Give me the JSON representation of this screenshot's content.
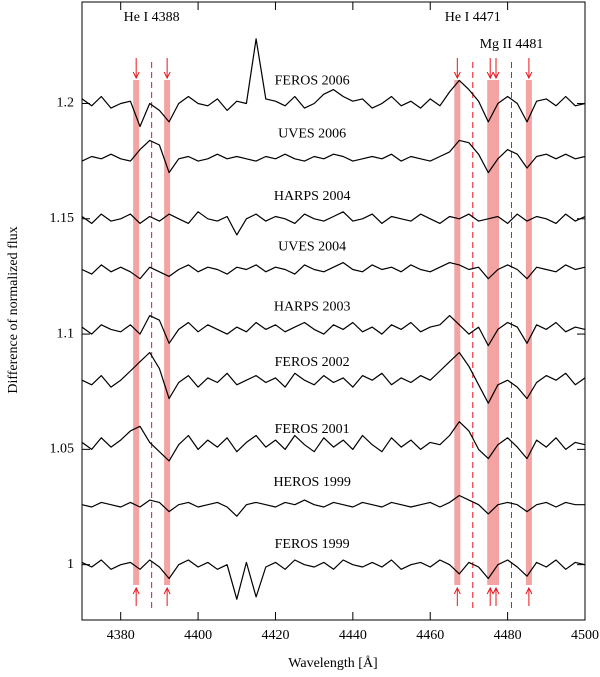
{
  "chart_data": {
    "type": "line",
    "xlabel": "Wavelength [Å]",
    "ylabel": "Difference of normalized flux",
    "xlim": [
      4370,
      4500
    ],
    "ylim": [
      0.976,
      1.244
    ],
    "xticks": [
      4380,
      4400,
      4420,
      4440,
      4460,
      4480,
      4500
    ],
    "yticks": [
      1,
      1.05,
      1.1,
      1.15,
      1.2
    ],
    "line_color": "#000000",
    "band_color": "#f4a3a3",
    "marker_color": "#e8141a",
    "annotations": [
      "He I 4388",
      "He I 4471",
      "Mg II 4481"
    ],
    "line_wavelengths": [
      4388,
      4471,
      4481
    ],
    "shaded_wavelengths": [
      4384,
      4392,
      4467,
      4475.5,
      4477,
      4485.5
    ],
    "x": [
      4370,
      4372.5,
      4375,
      4377.5,
      4380,
      4382.5,
      4385,
      4387.5,
      4390,
      4392.5,
      4395,
      4397.5,
      4400,
      4402.5,
      4405,
      4407.5,
      4410,
      4412.5,
      4415,
      4417.5,
      4420,
      4422.5,
      4425,
      4427.5,
      4430,
      4432.5,
      4435,
      4437.5,
      4440,
      4442.5,
      4445,
      4447.5,
      4450,
      4452.5,
      4455,
      4457.5,
      4460,
      4462.5,
      4465,
      4467.5,
      4470,
      4472.5,
      4475,
      4477.5,
      4480,
      4482.5,
      4485,
      4487.5,
      4490,
      4492.5,
      4495,
      4497.5,
      4500
    ],
    "series": [
      {
        "name": "FEROS 2006",
        "values": [
          1.202,
          1.199,
          1.203,
          1.198,
          1.2,
          1.201,
          1.19,
          1.2,
          1.197,
          1.192,
          1.2,
          1.203,
          1.2,
          1.199,
          1.202,
          1.197,
          1.201,
          1.2,
          1.228,
          1.202,
          1.201,
          1.199,
          1.203,
          1.198,
          1.2,
          1.204,
          1.206,
          1.203,
          1.201,
          1.202,
          1.198,
          1.2,
          1.203,
          1.199,
          1.201,
          1.198,
          1.202,
          1.199,
          1.205,
          1.21,
          1.206,
          1.201,
          1.192,
          1.2,
          1.203,
          1.2,
          1.192,
          1.201,
          1.202,
          1.199,
          1.203,
          1.199,
          1.2
        ]
      },
      {
        "name": "UVES 2006",
        "values": [
          1.175,
          1.177,
          1.176,
          1.178,
          1.176,
          1.175,
          1.18,
          1.184,
          1.182,
          1.17,
          1.176,
          1.177,
          1.175,
          1.176,
          1.178,
          1.176,
          1.177,
          1.176,
          1.175,
          1.177,
          1.176,
          1.178,
          1.176,
          1.175,
          1.177,
          1.176,
          1.178,
          1.177,
          1.175,
          1.176,
          1.177,
          1.176,
          1.178,
          1.175,
          1.177,
          1.176,
          1.175,
          1.177,
          1.179,
          1.184,
          1.183,
          1.178,
          1.17,
          1.176,
          1.18,
          1.178,
          1.172,
          1.177,
          1.178,
          1.176,
          1.178,
          1.176,
          1.177
        ]
      },
      {
        "name": "HARPS 2004",
        "values": [
          1.151,
          1.148,
          1.152,
          1.149,
          1.15,
          1.152,
          1.148,
          1.151,
          1.149,
          1.152,
          1.15,
          1.148,
          1.153,
          1.15,
          1.149,
          1.151,
          1.143,
          1.15,
          1.152,
          1.149,
          1.151,
          1.15,
          1.148,
          1.152,
          1.15,
          1.149,
          1.151,
          1.153,
          1.149,
          1.15,
          1.152,
          1.148,
          1.151,
          1.15,
          1.149,
          1.152,
          1.15,
          1.148,
          1.151,
          1.15,
          1.152,
          1.149,
          1.15,
          1.151,
          1.148,
          1.152,
          1.149,
          1.151,
          1.15,
          1.148,
          1.152,
          1.149,
          1.151
        ]
      },
      {
        "name": "UVES 2004",
        "values": [
          1.128,
          1.126,
          1.13,
          1.127,
          1.129,
          1.127,
          1.124,
          1.129,
          1.127,
          1.125,
          1.128,
          1.13,
          1.127,
          1.129,
          1.128,
          1.126,
          1.129,
          1.128,
          1.13,
          1.127,
          1.129,
          1.128,
          1.126,
          1.13,
          1.128,
          1.127,
          1.129,
          1.131,
          1.128,
          1.127,
          1.13,
          1.128,
          1.129,
          1.127,
          1.13,
          1.128,
          1.127,
          1.129,
          1.131,
          1.13,
          1.128,
          1.129,
          1.124,
          1.128,
          1.13,
          1.128,
          1.124,
          1.129,
          1.128,
          1.127,
          1.13,
          1.128,
          1.129
        ]
      },
      {
        "name": "HARPS 2003",
        "values": [
          1.103,
          1.1,
          1.104,
          1.102,
          1.101,
          1.104,
          1.1,
          1.108,
          1.106,
          1.096,
          1.102,
          1.105,
          1.101,
          1.104,
          1.102,
          1.1,
          1.103,
          1.101,
          1.105,
          1.102,
          1.104,
          1.101,
          1.103,
          1.105,
          1.102,
          1.1,
          1.104,
          1.102,
          1.105,
          1.101,
          1.103,
          1.1,
          1.104,
          1.102,
          1.105,
          1.101,
          1.103,
          1.104,
          1.108,
          1.104,
          1.1,
          1.103,
          1.095,
          1.102,
          1.105,
          1.103,
          1.096,
          1.104,
          1.102,
          1.105,
          1.101,
          1.103,
          1.102
        ]
      },
      {
        "name": "FEROS 2002",
        "values": [
          1.08,
          1.078,
          1.082,
          1.077,
          1.08,
          1.084,
          1.088,
          1.092,
          1.085,
          1.072,
          1.079,
          1.082,
          1.077,
          1.081,
          1.079,
          1.083,
          1.078,
          1.08,
          1.082,
          1.079,
          1.081,
          1.077,
          1.083,
          1.08,
          1.078,
          1.082,
          1.079,
          1.081,
          1.077,
          1.082,
          1.08,
          1.083,
          1.078,
          1.081,
          1.079,
          1.082,
          1.08,
          1.084,
          1.088,
          1.092,
          1.086,
          1.078,
          1.07,
          1.078,
          1.08,
          1.077,
          1.072,
          1.079,
          1.082,
          1.08,
          1.083,
          1.078,
          1.081
        ]
      },
      {
        "name": "FEROS 2001",
        "values": [
          1.053,
          1.05,
          1.055,
          1.051,
          1.054,
          1.058,
          1.06,
          1.053,
          1.049,
          1.045,
          1.052,
          1.056,
          1.05,
          1.054,
          1.051,
          1.055,
          1.049,
          1.053,
          1.056,
          1.051,
          1.054,
          1.05,
          1.056,
          1.052,
          1.049,
          1.055,
          1.051,
          1.054,
          1.05,
          1.056,
          1.052,
          1.049,
          1.055,
          1.051,
          1.054,
          1.05,
          1.053,
          1.052,
          1.056,
          1.062,
          1.058,
          1.05,
          1.046,
          1.052,
          1.055,
          1.051,
          1.046,
          1.054,
          1.051,
          1.055,
          1.05,
          1.053,
          1.052
        ]
      },
      {
        "name": "HEROS 1999",
        "values": [
          1.026,
          1.025,
          1.027,
          1.026,
          1.025,
          1.027,
          1.025,
          1.028,
          1.027,
          1.023,
          1.026,
          1.027,
          1.025,
          1.026,
          1.027,
          1.025,
          1.021,
          1.026,
          1.027,
          1.026,
          1.025,
          1.027,
          1.026,
          1.028,
          1.026,
          1.025,
          1.027,
          1.026,
          1.025,
          1.027,
          1.026,
          1.025,
          1.027,
          1.026,
          1.025,
          1.026,
          1.027,
          1.025,
          1.027,
          1.03,
          1.028,
          1.026,
          1.022,
          1.026,
          1.027,
          1.026,
          1.023,
          1.026,
          1.027,
          1.025,
          1.027,
          1.026,
          1.026
        ]
      },
      {
        "name": "FEROS 1999",
        "values": [
          1.001,
          0.999,
          1.002,
          0.998,
          1.0,
          1.001,
          0.998,
          1.002,
          0.999,
          0.994,
          1.0,
          1.002,
          0.999,
          1.001,
          0.998,
          1.0,
          0.985,
          1.001,
          0.986,
          0.999,
          1.001,
          0.998,
          1.002,
          1.0,
          0.999,
          1.001,
          0.998,
          1.002,
          1.0,
          0.999,
          1.001,
          0.999,
          1.002,
          0.998,
          1.0,
          1.001,
          0.999,
          1.002,
          1.0,
          0.996,
          1.001,
          0.999,
          0.994,
          1.0,
          1.002,
          0.999,
          0.995,
          1.001,
          0.999,
          1.002,
          0.998,
          1.001,
          1.0
        ]
      }
    ]
  }
}
